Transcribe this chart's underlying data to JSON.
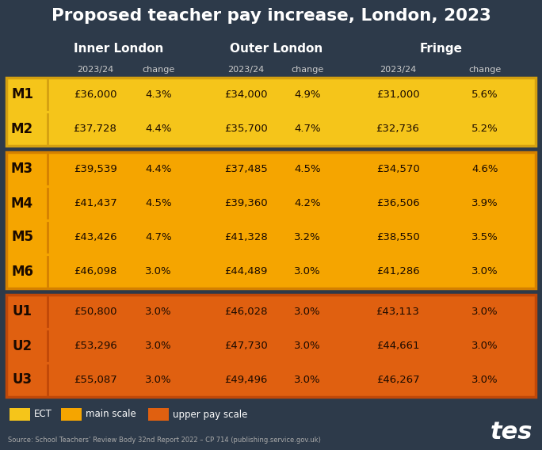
{
  "title": "Proposed teacher pay increase, London, 2023",
  "background_color": "#2d3a4a",
  "title_color": "#ffffff",
  "col_headers": [
    "Inner London",
    "Outer London",
    "Fringe"
  ],
  "rows": [
    {
      "label": "M1",
      "group": "ECT",
      "values": [
        "£36,000",
        "4.3%",
        "£34,000",
        "4.9%",
        "£31,000",
        "5.6%"
      ]
    },
    {
      "label": "M2",
      "group": "ECT",
      "values": [
        "£37,728",
        "4.4%",
        "£35,700",
        "4.7%",
        "£32,736",
        "5.2%"
      ]
    },
    {
      "label": "M3",
      "group": "main",
      "values": [
        "£39,539",
        "4.4%",
        "£37,485",
        "4.5%",
        "£34,570",
        "4.6%"
      ]
    },
    {
      "label": "M4",
      "group": "main",
      "values": [
        "£41,437",
        "4.5%",
        "£39,360",
        "4.2%",
        "£36,506",
        "3.9%"
      ]
    },
    {
      "label": "M5",
      "group": "main",
      "values": [
        "£43,426",
        "4.7%",
        "£41,328",
        "3.2%",
        "£38,550",
        "3.5%"
      ]
    },
    {
      "label": "M6",
      "group": "main",
      "values": [
        "£46,098",
        "3.0%",
        "£44,489",
        "3.0%",
        "£41,286",
        "3.0%"
      ]
    },
    {
      "label": "U1",
      "group": "upper",
      "values": [
        "£50,800",
        "3.0%",
        "£46,028",
        "3.0%",
        "£43,113",
        "3.0%"
      ]
    },
    {
      "label": "U2",
      "group": "upper",
      "values": [
        "£53,296",
        "3.0%",
        "£47,730",
        "3.0%",
        "£44,661",
        "3.0%"
      ]
    },
    {
      "label": "U3",
      "group": "upper",
      "values": [
        "£55,087",
        "3.0%",
        "£49,496",
        "3.0%",
        "£46,267",
        "3.0%"
      ]
    }
  ],
  "group_colors": {
    "ECT": "#f5c51a",
    "main": "#f5a500",
    "upper": "#e06010"
  },
  "group_border_colors": {
    "ECT": "#d4a010",
    "main": "#d48000",
    "upper": "#c04808"
  },
  "text_dark": "#1a0a00",
  "legend_items": [
    {
      "label": "ECT",
      "color": "#f5c51a"
    },
    {
      "label": "main scale",
      "color": "#f5a500"
    },
    {
      "label": "upper pay scale",
      "color": "#e06010"
    }
  ],
  "source_text": "Source: School Teachers’ Review Body 32nd Report 2022 – CP 714 (publishing.service.gov.uk)",
  "tes_color": "#ffffff",
  "header_color": "#ffffff",
  "subheader_color": "#cccccc"
}
